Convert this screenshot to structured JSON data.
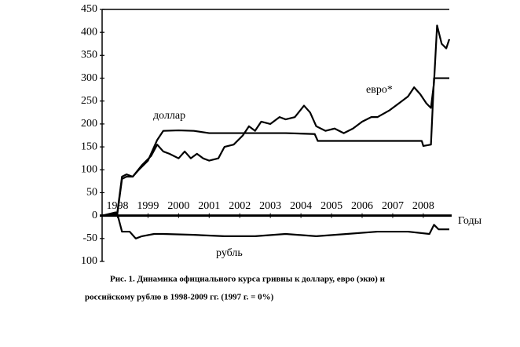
{
  "chart_data": {
    "type": "line",
    "caption": [
      "Рис. 1. Динамика официального курса гривны к доллару, евро (экю) и",
      "российскому рублю в 1998-2009 гг. (1997 г. = 0%)"
    ],
    "x_label": "Годы",
    "xlim": [
      1998,
      2009.35
    ],
    "xticks": [
      {
        "value": 1998.5,
        "label": "1998"
      },
      {
        "value": 1999.5,
        "label": "1999"
      },
      {
        "value": 2000.5,
        "label": "2000"
      },
      {
        "value": 2001.5,
        "label": "2001"
      },
      {
        "value": 2002.5,
        "label": "2002"
      },
      {
        "value": 2003.5,
        "label": "2003"
      },
      {
        "value": 2004.5,
        "label": "2004"
      },
      {
        "value": 2005.5,
        "label": "2005"
      },
      {
        "value": 2006.5,
        "label": "2006"
      },
      {
        "value": 2007.5,
        "label": "2007"
      },
      {
        "value": 2008.5,
        "label": "2008"
      }
    ],
    "ylim": [
      -100,
      450
    ],
    "yticks": [
      {
        "value": -100,
        "label": "100"
      },
      -50,
      0,
      50,
      100,
      150,
      200,
      250,
      300,
      350,
      400,
      450
    ],
    "series": [
      {
        "name": "доллар",
        "color": "#000000",
        "x": [
          1998.0,
          1998.5,
          1998.65,
          1998.8,
          1999.0,
          1999.2,
          1999.5,
          1999.8,
          2000.0,
          2000.5,
          2001.0,
          2001.5,
          2002.0,
          2003.0,
          2004.0,
          2004.95,
          2005.05,
          2006.0,
          2007.0,
          2008.0,
          2008.45,
          2008.5,
          2008.75,
          2008.85,
          2009.35
        ],
        "values": [
          0,
          5,
          80,
          85,
          85,
          100,
          120,
          165,
          185,
          186,
          185,
          180,
          180,
          180,
          180,
          178,
          163,
          163,
          163,
          163,
          163,
          152,
          155,
          300,
          300
        ]
      },
      {
        "name": "евро*",
        "color": "#000000",
        "x": [
          1998.0,
          1998.5,
          1998.65,
          1998.8,
          1999.0,
          1999.3,
          1999.6,
          1999.8,
          2000.0,
          2000.2,
          2000.5,
          2000.7,
          2000.9,
          2001.1,
          2001.3,
          2001.5,
          2001.8,
          2002.0,
          2002.3,
          2002.6,
          2002.8,
          2003.0,
          2003.2,
          2003.5,
          2003.8,
          2004.0,
          2004.3,
          2004.6,
          2004.8,
          2005.0,
          2005.3,
          2005.6,
          2005.9,
          2006.2,
          2006.5,
          2006.8,
          2007.0,
          2007.4,
          2007.8,
          2008.0,
          2008.2,
          2008.4,
          2008.6,
          2008.75,
          2008.85,
          2008.95,
          2009.1,
          2009.25,
          2009.35
        ],
        "values": [
          0,
          8,
          85,
          90,
          85,
          110,
          130,
          155,
          140,
          135,
          125,
          140,
          125,
          135,
          125,
          120,
          125,
          150,
          155,
          175,
          195,
          185,
          205,
          200,
          215,
          210,
          215,
          240,
          225,
          195,
          185,
          190,
          180,
          190,
          205,
          215,
          215,
          230,
          250,
          260,
          280,
          265,
          245,
          235,
          290,
          415,
          375,
          365,
          385
        ]
      },
      {
        "name": "рубль",
        "color": "#000000",
        "x": [
          1998.0,
          1998.5,
          1998.65,
          1998.9,
          1999.1,
          1999.3,
          1999.7,
          2000.0,
          2001.0,
          2002.0,
          2003.0,
          2004.0,
          2005.0,
          2006.0,
          2007.0,
          2008.0,
          2008.7,
          2008.85,
          2009.0,
          2009.35
        ],
        "values": [
          0,
          3,
          -35,
          -35,
          -50,
          -45,
          -40,
          -40,
          -42,
          -45,
          -45,
          -40,
          -45,
          -40,
          -35,
          -35,
          -40,
          -20,
          -30,
          -30
        ]
      }
    ]
  }
}
